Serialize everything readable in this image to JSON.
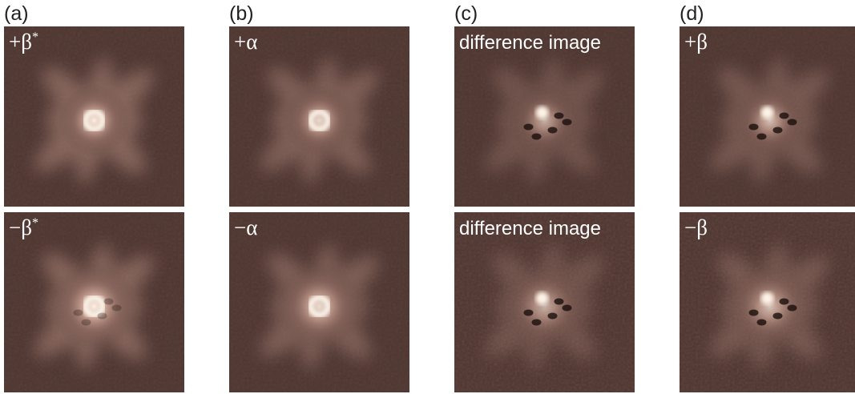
{
  "columns": [
    {
      "label": "(a)",
      "panels": [
        {
          "label": "+β",
          "sup": "*"
        },
        {
          "label": "−β",
          "sup": "*"
        }
      ]
    },
    {
      "label": "(b)",
      "panels": [
        {
          "label": "+α"
        },
        {
          "label": "−α"
        }
      ]
    },
    {
      "label": "(c)",
      "panels": [
        {
          "label": "difference image"
        },
        {
          "label": "difference image"
        }
      ]
    },
    {
      "label": "(d)",
      "panels": [
        {
          "label": "+β"
        },
        {
          "label": "−β"
        }
      ]
    }
  ]
}
